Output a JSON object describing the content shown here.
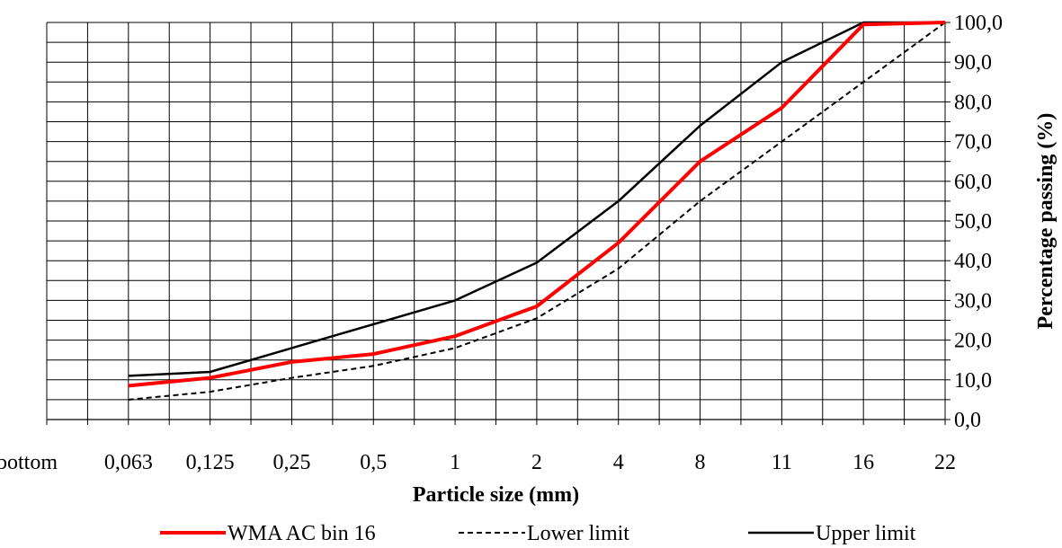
{
  "chart_data": {
    "type": "line",
    "categories": [
      "bottom",
      "0,063",
      "0,125",
      "0,25",
      "0,5",
      "1",
      "2",
      "4",
      "8",
      "11",
      "16",
      "22"
    ],
    "xlabel": "Particle size (mm)",
    "ylabel": "Percentage passing (%)",
    "ylim": [
      0,
      100
    ],
    "ytick_labels": [
      "0,0",
      "10,0",
      "20,0",
      "30,0",
      "40,0",
      "50,0",
      "60,0",
      "70,0",
      "80,0",
      "90,0",
      "100,0"
    ],
    "grid": true,
    "legend_position": "bottom",
    "series": [
      {
        "name": "WMA AC bin 16",
        "color": "#ff0000",
        "style": "solid-thick",
        "x": [
          "0,063",
          "0,125",
          "0,25",
          "0,5",
          "1",
          "2",
          "4",
          "8",
          "11",
          "16",
          "22"
        ],
        "values": [
          8.5,
          10.5,
          14.5,
          16.5,
          21,
          28.5,
          44.5,
          65,
          78.5,
          99.5,
          100
        ]
      },
      {
        "name": "Lower limit",
        "color": "#000000",
        "style": "dashed",
        "x": [
          "0,063",
          "0,125",
          "0,25",
          "0,5",
          "1",
          "2",
          "4",
          "8",
          "11",
          "16",
          "22"
        ],
        "values": [
          5,
          7,
          10.5,
          13.5,
          18,
          25.5,
          38,
          55,
          70,
          85,
          100
        ]
      },
      {
        "name": "Upper limit",
        "color": "#000000",
        "style": "solid",
        "x": [
          "0,063",
          "0,125",
          "0,25",
          "0,5",
          "1",
          "2",
          "4",
          "8",
          "11",
          "16",
          "22"
        ],
        "values": [
          11,
          12,
          18,
          24,
          30,
          39.5,
          55,
          74,
          90,
          100,
          100
        ]
      }
    ]
  }
}
